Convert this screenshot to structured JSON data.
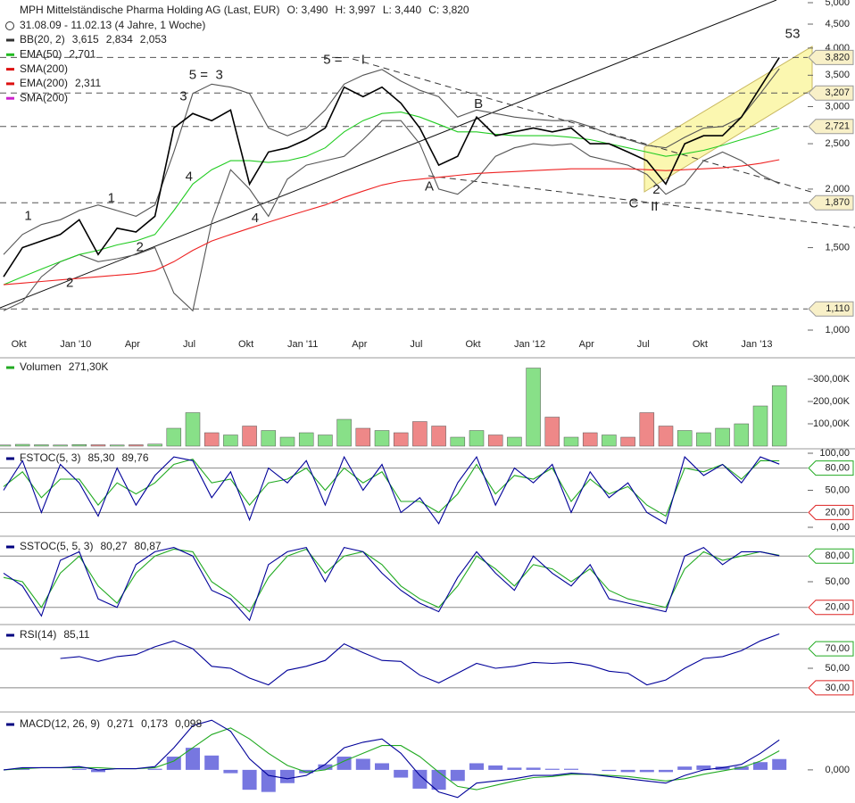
{
  "chart_data": [
    {
      "type": "line",
      "log_scale": true,
      "title": "MPH Mittelständische Pharma Holding AG (Last, EUR)",
      "ohlc": [
        "O: 3,490",
        "H: 3,997",
        "L: 3,440",
        "C: 3,820"
      ],
      "subtitle": "31.08.09 - 11.02.13 (4 Jahre, 1 Woche)",
      "legend": [
        {
          "label": "BB(20, 2)",
          "color": "#333333",
          "values": [
            "3,615",
            "2,834",
            "2,053"
          ]
        },
        {
          "label": "EMA(50)",
          "color": "#22bb22",
          "values": [
            "2,701"
          ]
        },
        {
          "label": "SMA(200)",
          "color": "#dd1111",
          "values": []
        },
        {
          "label": "EMA(200)",
          "color": "#dd1111",
          "values": [
            "2,311"
          ]
        },
        {
          "label": "SMA(200)",
          "color": "#cc22cc",
          "values": []
        }
      ],
      "categories": [
        null,
        "Okt",
        null,
        null,
        "Jan '10",
        null,
        null,
        "Apr",
        null,
        null,
        "Jul",
        null,
        null,
        "Okt",
        null,
        null,
        "Jan '11",
        null,
        null,
        "Apr",
        null,
        null,
        "Jul",
        null,
        null,
        "Okt",
        null,
        null,
        "Jan '12",
        null,
        null,
        "Apr",
        null,
        null,
        "Jul",
        null,
        null,
        "Okt",
        null,
        null,
        "Jan '13",
        null
      ],
      "ylim": [
        1,
        5
      ],
      "yticks": [
        {
          "value": 1,
          "label": "1,000"
        },
        {
          "value": 1.5,
          "label": "1,500"
        },
        {
          "value": 2,
          "label": "2,000"
        },
        {
          "value": 2.5,
          "label": "2,500"
        },
        {
          "value": 3,
          "label": "3,000"
        },
        {
          "value": 3.5,
          "label": "3,500"
        },
        {
          "value": 4,
          "label": "4,000"
        },
        {
          "value": 4.5,
          "label": "4,500"
        },
        {
          "value": 5,
          "label": "5,000"
        }
      ],
      "levels": [
        {
          "value": 3.82,
          "label": "3,820"
        },
        {
          "value": 3.207,
          "label": "3,207"
        },
        {
          "value": 2.721,
          "label": "2,721"
        },
        {
          "value": 1.87,
          "label": "1,870"
        },
        {
          "value": 1.11,
          "label": "1,110"
        }
      ],
      "series": [
        {
          "color": "#555555",
          "values": [
            1.45,
            1.6,
            1.68,
            1.72,
            1.8,
            1.85,
            1.8,
            1.75,
            1.85,
            2.4,
            3.2,
            3.35,
            3.3,
            3.2,
            2.7,
            2.6,
            2.7,
            2.95,
            3.35,
            3.5,
            3.6,
            3.4,
            3.25,
            3.15,
            2.85,
            2.95,
            2.9,
            2.85,
            2.82,
            2.8,
            2.8,
            2.72,
            2.62,
            2.55,
            2.48,
            2.45,
            2.58,
            2.7,
            2.72,
            2.85,
            3.2,
            3.615
          ]
        },
        {
          "color": "#555555",
          "values": [
            1.1,
            1.15,
            1.3,
            1.4,
            1.45,
            1.4,
            1.42,
            1.45,
            1.5,
            1.2,
            1.1,
            1.7,
            2.2,
            2.0,
            1.75,
            2.1,
            2.25,
            2.3,
            2.35,
            2.55,
            2.8,
            2.8,
            2.5,
            2.0,
            1.95,
            2.1,
            2.35,
            2.45,
            2.5,
            2.48,
            2.5,
            2.35,
            2.3,
            2.25,
            2.15,
            1.95,
            2.05,
            2.3,
            2.4,
            2.3,
            2.15,
            2.053
          ]
        },
        {
          "color": "#22cc22",
          "values": [
            1.25,
            1.3,
            1.35,
            1.4,
            1.45,
            1.48,
            1.52,
            1.55,
            1.6,
            1.8,
            2.05,
            2.2,
            2.3,
            2.3,
            2.28,
            2.3,
            2.35,
            2.45,
            2.65,
            2.8,
            2.9,
            2.92,
            2.85,
            2.75,
            2.65,
            2.65,
            2.62,
            2.6,
            2.6,
            2.6,
            2.58,
            2.55,
            2.5,
            2.45,
            2.4,
            2.35,
            2.38,
            2.42,
            2.48,
            2.55,
            2.62,
            2.701
          ]
        },
        {
          "color": "#ee2222",
          "values": [
            1.25,
            1.26,
            1.27,
            1.28,
            1.29,
            1.3,
            1.31,
            1.32,
            1.34,
            1.4,
            1.48,
            1.55,
            1.6,
            1.65,
            1.7,
            1.75,
            1.8,
            1.85,
            1.92,
            1.98,
            2.04,
            2.08,
            2.1,
            2.12,
            2.14,
            2.16,
            2.17,
            2.18,
            2.19,
            2.2,
            2.21,
            2.21,
            2.21,
            2.21,
            2.2,
            2.19,
            2.2,
            2.21,
            2.22,
            2.24,
            2.27,
            2.311
          ]
        },
        {
          "color": "#000000",
          "values": [
            1.3,
            1.5,
            1.55,
            1.6,
            1.72,
            1.45,
            1.65,
            1.62,
            1.75,
            2.7,
            2.9,
            2.8,
            2.95,
            2.05,
            2.4,
            2.45,
            2.55,
            2.7,
            3.3,
            3.15,
            3.3,
            3.05,
            2.7,
            2.25,
            2.35,
            2.85,
            2.6,
            2.65,
            2.7,
            2.65,
            2.7,
            2.5,
            2.5,
            2.4,
            2.3,
            2.05,
            2.5,
            2.6,
            2.6,
            2.85,
            3.3,
            3.82
          ]
        }
      ],
      "annotations": [
        {
          "text": "1",
          "x": 1.3,
          "y": 1.75,
          "color": "#2a8fd6"
        },
        {
          "text": "2",
          "x": 3.5,
          "y": 1.26,
          "color": "#2a8fd6"
        },
        {
          "text": "1",
          "x": 5.7,
          "y": 1.91,
          "color": "#9922bb"
        },
        {
          "text": "2",
          "x": 7.2,
          "y": 1.5,
          "color": "#9922bb"
        },
        {
          "text": "3",
          "x": 9.5,
          "y": 3.15,
          "color": "#9922bb"
        },
        {
          "text": "4",
          "x": 9.8,
          "y": 2.12,
          "color": "#9922bb"
        },
        {
          "text": "5 =",
          "x": 10.3,
          "y": 3.5,
          "color": "#9922bb"
        },
        {
          "text": "3",
          "x": 11.4,
          "y": 3.5,
          "color": "#2a8fd6"
        },
        {
          "text": "4",
          "x": 13.3,
          "y": 1.73,
          "color": "#2a8fd6"
        },
        {
          "text": "5 =",
          "x": 17.4,
          "y": 3.77,
          "color": "#2a8fd6"
        },
        {
          "text": "I",
          "x": 19,
          "y": 3.77,
          "color": "#1144cc"
        },
        {
          "text": "A",
          "x": 22.5,
          "y": 2.02,
          "color": "#000000"
        },
        {
          "text": "B",
          "x": 25.1,
          "y": 3.03,
          "color": "#000000"
        },
        {
          "text": "C",
          "x": 33.3,
          "y": 1.86,
          "color": "#000000"
        },
        {
          "text": "2",
          "x": 34.5,
          "y": 1.99,
          "color": "#2a8fd6"
        },
        {
          "text": "II",
          "x": 34.4,
          "y": 1.83,
          "color": "#1144cc"
        },
        {
          "text": "5",
          "x": 41.5,
          "y": 4.28,
          "color": "#cc22cc"
        },
        {
          "text": "3",
          "x": 41.9,
          "y": 4.28,
          "color": "#cc22cc"
        }
      ]
    },
    {
      "type": "bar",
      "legend": {
        "label": "Volumen",
        "color": "#22aa22",
        "values": [
          {
            "text": "271,30K",
            "color": "#228822"
          }
        ]
      },
      "up_color": "#88e088",
      "down_color": "#ee8888",
      "ylim": [
        0,
        380000
      ],
      "yticks": [
        {
          "value": 100000,
          "label": "100,00K"
        },
        {
          "value": 200000,
          "label": "200,00K"
        },
        {
          "value": 300000,
          "label": "300,00K"
        }
      ],
      "values": [
        5000,
        8000,
        6000,
        5000,
        7000,
        6000,
        5000,
        6000,
        9000,
        80000,
        150000,
        60000,
        50000,
        90000,
        70000,
        40000,
        60000,
        50000,
        120000,
        80000,
        70000,
        60000,
        110000,
        90000,
        40000,
        70000,
        50000,
        40000,
        350000,
        130000,
        40000,
        60000,
        50000,
        40000,
        150000,
        90000,
        70000,
        60000,
        80000,
        100000,
        180000,
        271300
      ]
    },
    {
      "type": "line",
      "legend": {
        "label": "FSTOC(5, 3)",
        "color": "#000080",
        "values": [
          {
            "text": "85,30",
            "color": "#000080"
          },
          {
            "text": "89,76",
            "color": "#22aa22"
          }
        ]
      },
      "ylim": [
        0,
        100
      ],
      "yticks": [
        {
          "value": 0,
          "label": "0,00"
        },
        {
          "value": 20,
          "label": "20,00",
          "color": "#dd2222"
        },
        {
          "value": 50,
          "label": "50,00"
        },
        {
          "value": 80,
          "label": "80,00",
          "color": "#22aa22"
        },
        {
          "value": 100,
          "label": "100,00"
        }
      ],
      "series": [
        {
          "color": "#22aa22",
          "values": [
            55,
            75,
            40,
            65,
            65,
            30,
            60,
            45,
            60,
            85,
            92,
            60,
            65,
            30,
            60,
            65,
            80,
            50,
            80,
            60,
            75,
            35,
            35,
            20,
            45,
            85,
            45,
            70,
            65,
            80,
            35,
            65,
            45,
            55,
            30,
            15,
            80,
            75,
            85,
            65,
            90,
            89.76
          ]
        },
        {
          "color": "#000099",
          "values": [
            50,
            90,
            20,
            85,
            60,
            15,
            80,
            30,
            70,
            95,
            90,
            40,
            75,
            10,
            80,
            60,
            90,
            30,
            95,
            50,
            85,
            20,
            40,
            5,
            60,
            95,
            30,
            80,
            60,
            85,
            20,
            75,
            40,
            60,
            20,
            5,
            95,
            70,
            85,
            60,
            95,
            85.3
          ]
        }
      ]
    },
    {
      "type": "line",
      "legend": {
        "label": "SSTOC(5, 5, 3)",
        "color": "#000080",
        "values": [
          {
            "text": "80,27",
            "color": "#000080"
          },
          {
            "text": "80,87",
            "color": "#22aa22"
          }
        ]
      },
      "ylim": [
        0,
        100
      ],
      "yticks": [
        {
          "value": 20,
          "label": "20,00",
          "color": "#dd2222"
        },
        {
          "value": 50,
          "label": "50,00"
        },
        {
          "value": 80,
          "label": "80,00",
          "color": "#22aa22"
        }
      ],
      "series": [
        {
          "color": "#22aa22",
          "values": [
            55,
            50,
            20,
            60,
            80,
            45,
            25,
            60,
            80,
            88,
            85,
            50,
            35,
            15,
            55,
            80,
            88,
            60,
            80,
            85,
            70,
            45,
            30,
            20,
            45,
            80,
            65,
            45,
            70,
            65,
            50,
            65,
            40,
            30,
            25,
            20,
            65,
            85,
            75,
            80,
            85,
            80.87
          ]
        },
        {
          "color": "#000099",
          "values": [
            60,
            45,
            10,
            75,
            85,
            30,
            20,
            70,
            85,
            90,
            80,
            40,
            30,
            5,
            70,
            85,
            90,
            50,
            90,
            85,
            60,
            40,
            25,
            15,
            55,
            85,
            60,
            40,
            80,
            60,
            45,
            70,
            30,
            25,
            20,
            15,
            80,
            90,
            70,
            85,
            85,
            80.27
          ]
        }
      ]
    },
    {
      "type": "line",
      "legend": {
        "label": "RSI(14)",
        "color": "#000080",
        "values": [
          {
            "text": "85,11",
            "color": "#000080"
          }
        ]
      },
      "ylim": [
        8,
        92
      ],
      "yticks": [
        {
          "value": 30,
          "label": "30,00",
          "color": "#dd2222"
        },
        {
          "value": 50,
          "label": "50,00"
        },
        {
          "value": 70,
          "label": "70,00",
          "color": "#22aa22"
        }
      ],
      "series": [
        {
          "color": "#000099",
          "values": [
            null,
            null,
            null,
            60,
            62,
            57,
            62,
            64,
            72,
            78,
            70,
            52,
            50,
            40,
            33,
            48,
            52,
            58,
            75,
            66,
            58,
            57,
            43,
            35,
            45,
            55,
            50,
            52,
            56,
            55,
            56,
            53,
            47,
            45,
            33,
            38,
            50,
            60,
            62,
            68,
            78,
            85.11
          ]
        }
      ]
    },
    {
      "type": "line",
      "legend": {
        "label": "MACD(12, 26, 9)",
        "color": "#000080",
        "values": [
          {
            "text": "0,271",
            "color": "#000080"
          },
          {
            "text": "0,173",
            "color": "#22aa22"
          },
          {
            "text": "0,098",
            "color": "#6666dd"
          }
        ]
      },
      "ylim": [
        -0.3,
        0.5
      ],
      "yticks": [
        {
          "value": 0,
          "label": "0,000"
        }
      ],
      "series": [
        {
          "type": "bar",
          "color": "#7777e0",
          "values": [
            0,
            0.01,
            0,
            0,
            0.01,
            -0.02,
            0,
            0,
            0.01,
            0.12,
            0.2,
            0.13,
            -0.03,
            -0.18,
            -0.2,
            -0.12,
            -0.03,
            0.05,
            0.12,
            0.1,
            0.06,
            -0.07,
            -0.17,
            -0.18,
            -0.1,
            0.06,
            0.04,
            0.02,
            0.02,
            0.01,
            0.01,
            0,
            -0.01,
            -0.02,
            -0.02,
            -0.02,
            0.03,
            0.04,
            0.03,
            0.03,
            0.07,
            0.098
          ]
        },
        {
          "color": "#22aa22",
          "values": [
            0,
            0.01,
            0.02,
            0.02,
            0.02,
            0.02,
            0.01,
            0.01,
            0.02,
            0.08,
            0.2,
            0.32,
            0.38,
            0.28,
            0.15,
            0.04,
            -0.02,
            0,
            0.08,
            0.15,
            0.22,
            0.22,
            0.12,
            -0.02,
            -0.15,
            -0.18,
            -0.14,
            -0.1,
            -0.07,
            -0.06,
            -0.04,
            -0.04,
            -0.05,
            -0.06,
            -0.08,
            -0.1,
            -0.08,
            -0.04,
            -0.01,
            0.02,
            0.08,
            0.173
          ]
        },
        {
          "color": "#000099",
          "values": [
            0.0,
            0.02,
            0.02,
            0.02,
            0.03,
            0.0,
            0.01,
            0.01,
            0.03,
            0.2,
            0.4,
            0.45,
            0.35,
            0.1,
            -0.05,
            -0.08,
            -0.05,
            0.05,
            0.2,
            0.25,
            0.28,
            0.15,
            -0.05,
            -0.2,
            -0.25,
            -0.12,
            -0.1,
            -0.08,
            -0.05,
            -0.05,
            -0.03,
            -0.04,
            -0.06,
            -0.08,
            -0.1,
            -0.12,
            -0.05,
            0.0,
            0.02,
            0.05,
            0.15,
            0.271
          ]
        }
      ]
    }
  ]
}
